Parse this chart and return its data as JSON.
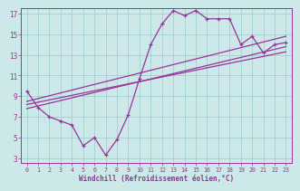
{
  "xlabel": "Windchill (Refroidissement éolien,°C)",
  "bg_color": "#cce8e8",
  "line_color": "#993399",
  "grid_color": "#99cccc",
  "xlim": [
    -0.5,
    23.5
  ],
  "ylim": [
    2.5,
    17.5
  ],
  "xticks": [
    0,
    1,
    2,
    3,
    4,
    5,
    6,
    7,
    8,
    9,
    10,
    11,
    12,
    13,
    14,
    15,
    16,
    17,
    18,
    19,
    20,
    21,
    22,
    23
  ],
  "yticks": [
    3,
    5,
    7,
    9,
    11,
    13,
    15,
    17
  ],
  "data_x": [
    0,
    1,
    2,
    3,
    4,
    5,
    6,
    7,
    8,
    9,
    10,
    11,
    12,
    13,
    14,
    15,
    16,
    17,
    18,
    19,
    20,
    21,
    22,
    23
  ],
  "data_y": [
    9.5,
    7.9,
    7.0,
    6.6,
    6.2,
    4.2,
    5.0,
    3.3,
    4.8,
    7.2,
    10.7,
    14.0,
    16.0,
    17.3,
    16.8,
    17.3,
    16.5,
    16.5,
    16.5,
    14.0,
    14.8,
    13.2,
    14.0,
    14.2
  ],
  "trend_lines": [
    {
      "x": [
        0,
        23
      ],
      "y": [
        8.5,
        14.8
      ]
    },
    {
      "x": [
        0,
        23
      ],
      "y": [
        8.2,
        13.3
      ]
    },
    {
      "x": [
        0,
        23
      ],
      "y": [
        7.8,
        13.8
      ]
    }
  ]
}
